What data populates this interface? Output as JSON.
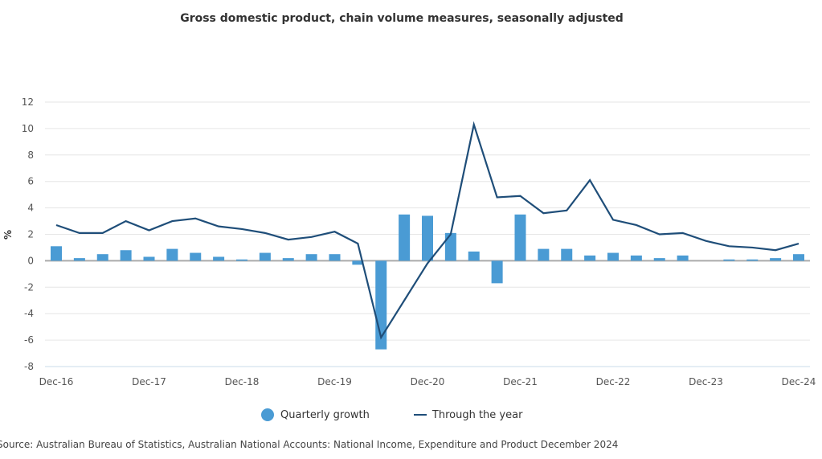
{
  "chart_data": {
    "type": "bar+line",
    "title": "Gross domestic product, chain volume measures, seasonally adjusted",
    "xlabel": "",
    "ylabel": "%",
    "ylim": [
      -8,
      12
    ],
    "yticks": [
      12,
      10,
      8,
      6,
      4,
      2,
      0,
      -2,
      -4,
      -6,
      -8
    ],
    "grid": true,
    "legend_position": "bottom-center",
    "x": [
      "Dec-16",
      "Mar-17",
      "Jun-17",
      "Sep-17",
      "Dec-17",
      "Mar-18",
      "Jun-18",
      "Sep-18",
      "Dec-18",
      "Mar-19",
      "Jun-19",
      "Sep-19",
      "Dec-19",
      "Mar-20",
      "Jun-20",
      "Sep-20",
      "Dec-20",
      "Mar-21",
      "Jun-21",
      "Sep-21",
      "Dec-21",
      "Mar-22",
      "Jun-22",
      "Sep-22",
      "Dec-22",
      "Mar-23",
      "Jun-23",
      "Sep-23",
      "Dec-23",
      "Mar-24",
      "Jun-24",
      "Sep-24",
      "Dec-24"
    ],
    "xtick_labels": [
      "Dec-16",
      "Dec-17",
      "Dec-18",
      "Dec-19",
      "Dec-20",
      "Dec-21",
      "Dec-22",
      "Dec-23",
      "Dec-24"
    ],
    "series": [
      {
        "name": "Quarterly growth",
        "type": "bar",
        "color": "#4a9bd4",
        "values": [
          1.1,
          0.2,
          0.5,
          0.8,
          0.3,
          0.9,
          0.6,
          0.3,
          0.1,
          0.6,
          0.2,
          0.5,
          0.5,
          -0.3,
          -6.7,
          3.5,
          3.4,
          2.1,
          0.7,
          -1.7,
          3.5,
          0.9,
          0.9,
          0.4,
          0.6,
          0.4,
          0.2,
          0.4,
          0.0,
          0.1,
          0.1,
          0.2,
          0.5
        ]
      },
      {
        "name": "Through the year",
        "type": "line",
        "color": "#1f4e79",
        "values": [
          2.7,
          2.1,
          2.1,
          3.0,
          2.3,
          3.0,
          3.2,
          2.6,
          2.4,
          2.1,
          1.6,
          1.8,
          2.2,
          1.3,
          -5.8,
          -3.0,
          -0.2,
          2.0,
          10.3,
          4.8,
          4.9,
          3.6,
          3.8,
          6.1,
          3.1,
          2.7,
          2.0,
          2.1,
          1.5,
          1.1,
          1.0,
          0.8,
          1.3
        ]
      }
    ],
    "zero_line_color": "#aaaaaa"
  },
  "legend": {
    "bar_label": "Quarterly growth",
    "line_label": "Through the year"
  },
  "source": "Source: Australian Bureau of Statistics, Australian National Accounts: National Income, Expenditure and Product December 2024"
}
